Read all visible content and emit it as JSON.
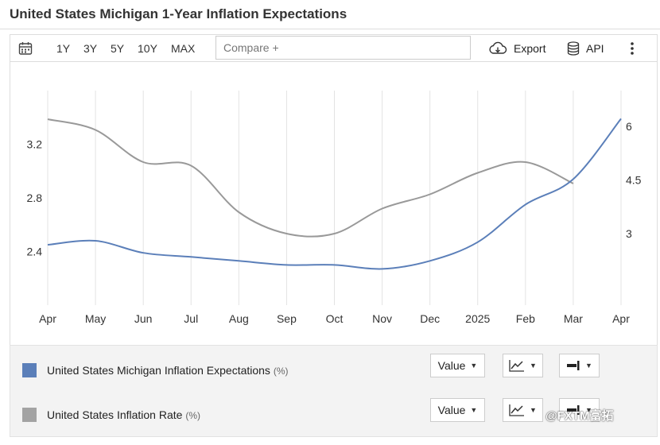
{
  "page": {
    "title": "United States Michigan 1-Year Inflation Expectations"
  },
  "toolbar": {
    "ranges": [
      "1Y",
      "3Y",
      "5Y",
      "10Y",
      "MAX"
    ],
    "compare_placeholder": "Compare +",
    "export_label": "Export",
    "api_label": "API",
    "icons": [
      "calendar-icon",
      "cloud-download-icon",
      "database-icon",
      "kebab-menu-icon"
    ]
  },
  "chart_data": {
    "type": "line",
    "x": [
      "Apr",
      "May",
      "Jun",
      "Jul",
      "Aug",
      "Sep",
      "Oct",
      "Nov",
      "Dec",
      "2025",
      "Feb",
      "Mar",
      "Apr"
    ],
    "series": [
      {
        "name": "United States Michigan Inflation Expectations",
        "unit": "%",
        "axis": "left",
        "color": "#5b7fb9",
        "values": [
          2.45,
          2.48,
          2.39,
          2.36,
          2.33,
          2.3,
          2.3,
          2.27,
          2.33,
          2.47,
          2.75,
          2.94,
          3.39
        ]
      },
      {
        "name": "United States Inflation Rate",
        "unit": "%",
        "axis": "right",
        "color": "#999999",
        "values": [
          3.4,
          3.3,
          3.0,
          2.9,
          2.5,
          2.4,
          2.4,
          2.6,
          2.7,
          2.9,
          3.0,
          2.8,
          2.4
        ],
        "raw_values": [
          6.2,
          5.9,
          5.0,
          4.9,
          3.6,
          3.0,
          3.0,
          3.7,
          4.1,
          4.7,
          5.0,
          4.4,
          3.0
        ]
      }
    ],
    "left_axis": {
      "ticks": [
        "2.4",
        "2.8",
        "3.2"
      ],
      "values": [
        2.4,
        2.8,
        3.2
      ],
      "ylim": [
        2.0,
        3.6
      ]
    },
    "right_axis": {
      "ticks": [
        "3",
        "4.5",
        "6"
      ],
      "values": [
        3,
        4.5,
        6
      ],
      "ylim": [
        1.0,
        7.0
      ]
    },
    "grid": "vertical",
    "legend_position": "bottom"
  },
  "legend": {
    "items": [
      {
        "name": "United States Michigan Inflation Expectations",
        "unit": "(%)",
        "color": "#5b7fb9",
        "value_label": "Value"
      },
      {
        "name": "United States Inflation Rate",
        "unit": "(%)",
        "color": "#a3a3a3",
        "value_label": "Value"
      }
    ]
  },
  "watermark": "@FXTM富拓"
}
